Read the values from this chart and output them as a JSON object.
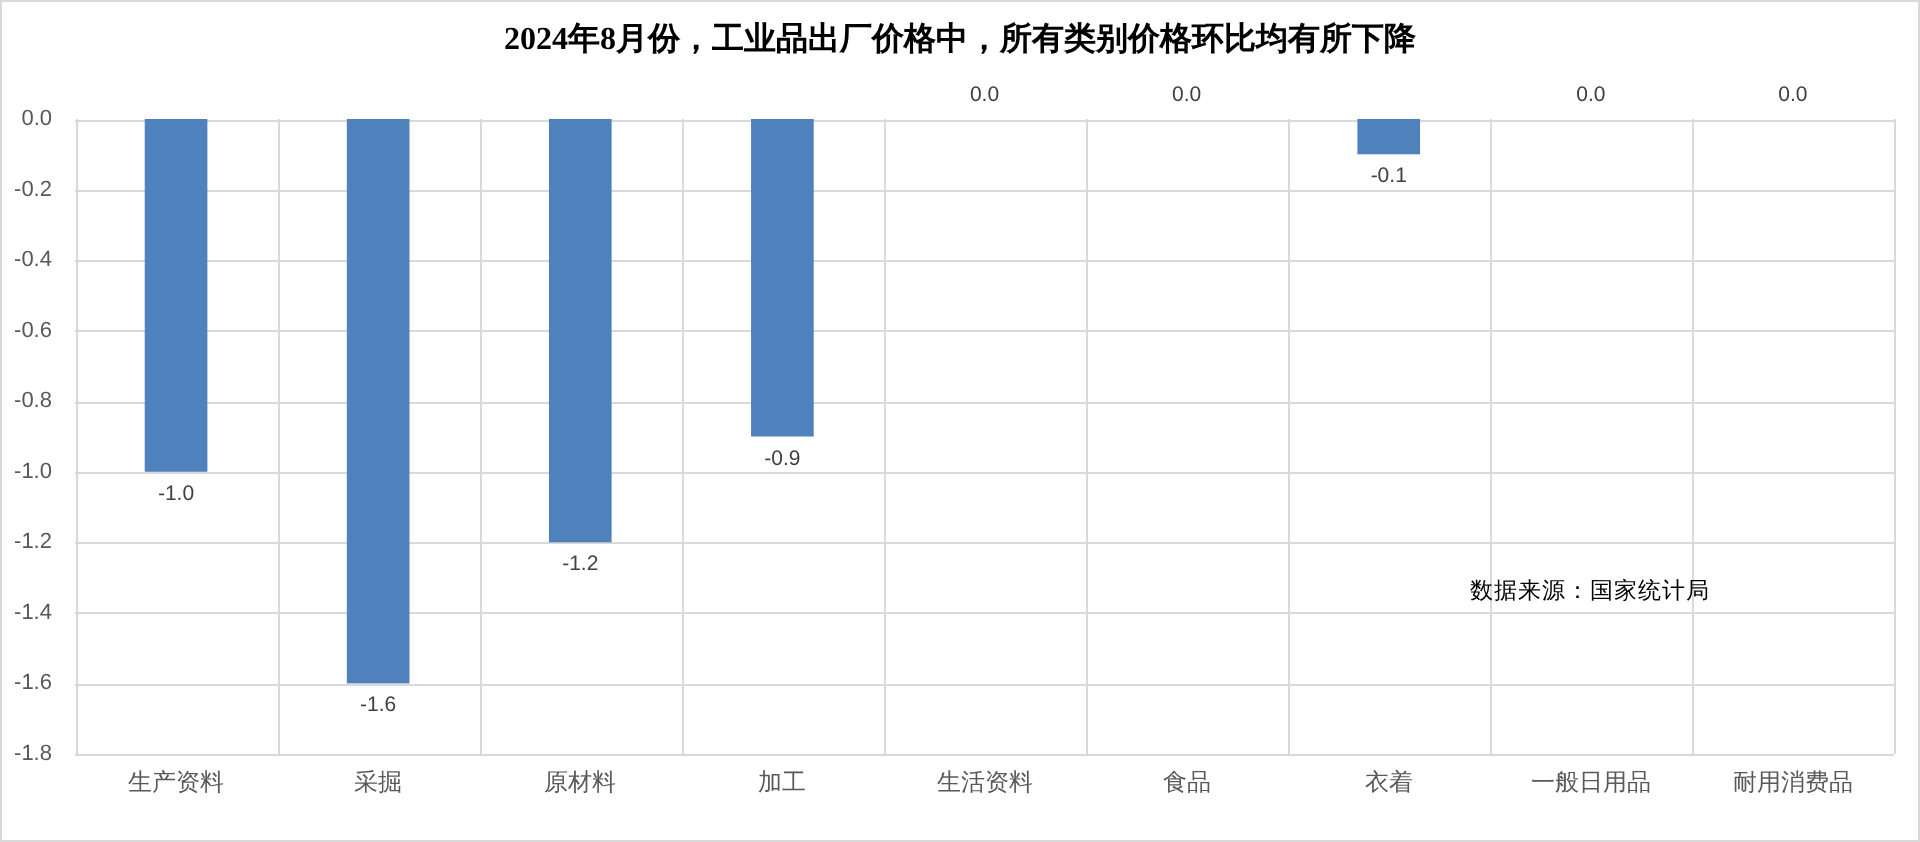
{
  "chart_data": {
    "type": "bar",
    "title": "2024年8月份，工业品出厂价格中，所有类别价格环比均有所下降",
    "categories": [
      "生产资料",
      "采掘",
      "原材料",
      "加工",
      "生活资料",
      "食品",
      "衣着",
      "一般日用品",
      "耐用消费品"
    ],
    "values": [
      -1.0,
      -1.6,
      -1.2,
      -0.9,
      0.0,
      0.0,
      -0.1,
      0.0,
      0.0
    ],
    "value_labels": [
      "-1.0",
      "-1.6",
      "-1.2",
      "-0.9",
      "0.0",
      "0.0",
      "-0.1",
      "0.0",
      "0.0"
    ],
    "color": "#4f81bd",
    "ylim": [
      -1.8,
      0
    ],
    "yticks": [
      {
        "value": 0,
        "label": "0.0"
      },
      -0.2,
      -0.4,
      -0.6,
      -0.8,
      {
        "value": -1,
        "label": "-1.0"
      },
      -1.2,
      -1.4,
      -1.6,
      -1.8
    ],
    "grid": true,
    "annotations": [
      "数据来源：国家统计局"
    ]
  }
}
